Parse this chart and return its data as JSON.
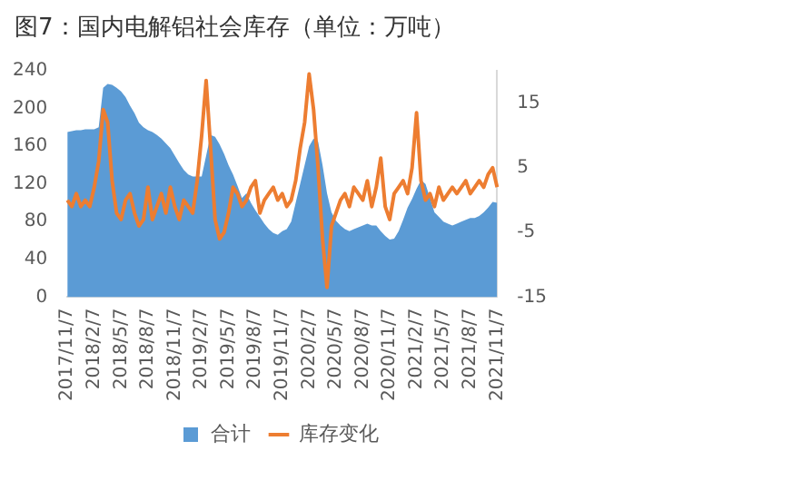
{
  "chart_data": {
    "type": "area",
    "title": "图7：国内电解铝社会库存（单位：万吨）",
    "categories": [
      "2017/11/7",
      null,
      null,
      null,
      null,
      null,
      "2018/2/7",
      null,
      null,
      null,
      null,
      null,
      "2018/5/7",
      null,
      null,
      null,
      null,
      null,
      "2018/8/7",
      null,
      null,
      null,
      null,
      null,
      "2018/11/7",
      null,
      null,
      null,
      null,
      null,
      "2019/2/7",
      null,
      null,
      null,
      null,
      null,
      "2019/5/7",
      null,
      null,
      null,
      null,
      null,
      "2019/8/7",
      null,
      null,
      null,
      null,
      null,
      "2019/11/7",
      null,
      null,
      null,
      null,
      null,
      "2020/2/7",
      null,
      null,
      null,
      null,
      null,
      "2020/5/7",
      null,
      null,
      null,
      null,
      null,
      "2020/8/7",
      null,
      null,
      null,
      null,
      null,
      "2020/11/7",
      null,
      null,
      null,
      null,
      null,
      "2021/2/7",
      null,
      null,
      null,
      null,
      null,
      "2021/5/7",
      null,
      null,
      null,
      null,
      null,
      "2021/8/7",
      null,
      null,
      null,
      null,
      null,
      "2021/11/7"
    ],
    "series": [
      {
        "name": "合计",
        "color": "#5b9bd5",
        "values": [
          175,
          176,
          177,
          177,
          178,
          178,
          178,
          180,
          222,
          226,
          225,
          222,
          218,
          212,
          203,
          195,
          185,
          180,
          177,
          175,
          172,
          168,
          163,
          158,
          150,
          142,
          135,
          130,
          128,
          128,
          128,
          150,
          172,
          170,
          162,
          152,
          140,
          130,
          118,
          105,
          110,
          100,
          92,
          85,
          78,
          72,
          68,
          66,
          70,
          72,
          80,
          100,
          120,
          140,
          160,
          168,
          165,
          140,
          110,
          90,
          81,
          76,
          72,
          70,
          72,
          74,
          76,
          78,
          76,
          76,
          70,
          65,
          61,
          62,
          70,
          82,
          95,
          104,
          115,
          124,
          120,
          105,
          90,
          85,
          80,
          78,
          76,
          78,
          80,
          82,
          84,
          84,
          86,
          90,
          95,
          101,
          100
        ]
      },
      {
        "name": "库存变化",
        "type": "line",
        "axis": "y2",
        "color": "#ed7d31",
        "values": [
          0,
          -1,
          1,
          -1,
          0,
          -1,
          2,
          6,
          14,
          12,
          3,
          -2,
          -3,
          0,
          1,
          -2,
          -4,
          -3,
          2,
          -3,
          -1,
          1,
          -2,
          2,
          -1,
          -3,
          0,
          -1,
          -2,
          3,
          10,
          18.5,
          8,
          -3,
          -6,
          -5,
          -2,
          2,
          1,
          -1,
          0,
          2,
          3,
          -2,
          0,
          1,
          2,
          0,
          1,
          -1,
          0,
          3,
          8,
          12,
          19.5,
          14,
          5,
          -6,
          -13.5,
          -4,
          -2,
          0,
          1,
          -1,
          2,
          1,
          0,
          3,
          -1,
          2,
          6.5,
          -1,
          -3,
          1,
          2,
          3,
          1,
          5,
          13.5,
          3,
          0,
          1,
          -1,
          2,
          0,
          1,
          2,
          1,
          2,
          3,
          1,
          2,
          3,
          2,
          4,
          5,
          2
        ]
      }
    ],
    "ylim": [
      0,
      240
    ],
    "yticks": [
      0,
      40,
      80,
      120,
      160,
      200,
      240
    ],
    "y2lim": [
      -15,
      20
    ],
    "y2ticks": [
      -15,
      -5,
      5,
      15
    ],
    "grid": false,
    "legend": "bottom",
    "marker": "none",
    "line_style": "solid"
  }
}
